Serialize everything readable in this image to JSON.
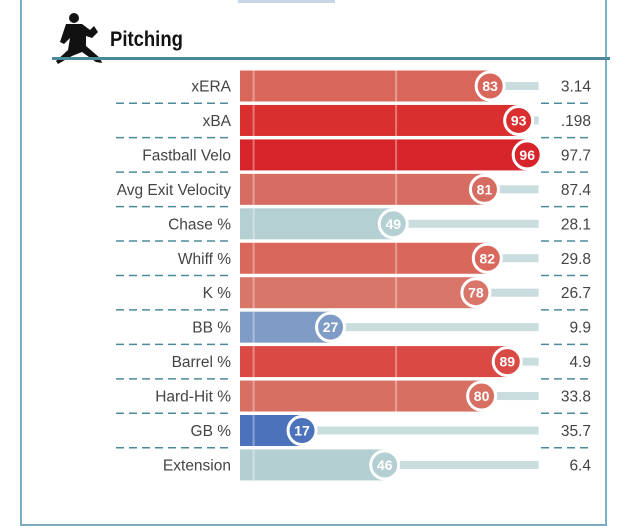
{
  "section": {
    "title": "Pitching",
    "icon": "pitcher-icon"
  },
  "chart_data": {
    "type": "bar",
    "orientation": "horizontal",
    "title": "Pitching",
    "xlim": [
      0,
      100
    ],
    "categories": [
      "xERA",
      "xBA",
      "Fastball Velo",
      "Avg Exit Velocity",
      "Chase %",
      "Whiff %",
      "K %",
      "BB %",
      "Barrel %",
      "Hard-Hit %",
      "GB %",
      "Extension"
    ],
    "percentiles": [
      83,
      93,
      96,
      81,
      49,
      82,
      78,
      27,
      89,
      80,
      17,
      46
    ],
    "values": [
      "3.14",
      ".198",
      "97.7",
      "87.4",
      "28.1",
      "29.8",
      "26.7",
      "9.9",
      "4.9",
      "33.8",
      "35.7",
      "6.4"
    ],
    "colors": [
      "#d9665b",
      "#d92f2f",
      "#d7242a",
      "#d76d62",
      "#b5d0d3",
      "#d9675b",
      "#d8766a",
      "#7f9cc6",
      "#da4a44",
      "#d86f63",
      "#4c72bc",
      "#b4cfd2"
    ],
    "track_color": "#c9dcde"
  }
}
